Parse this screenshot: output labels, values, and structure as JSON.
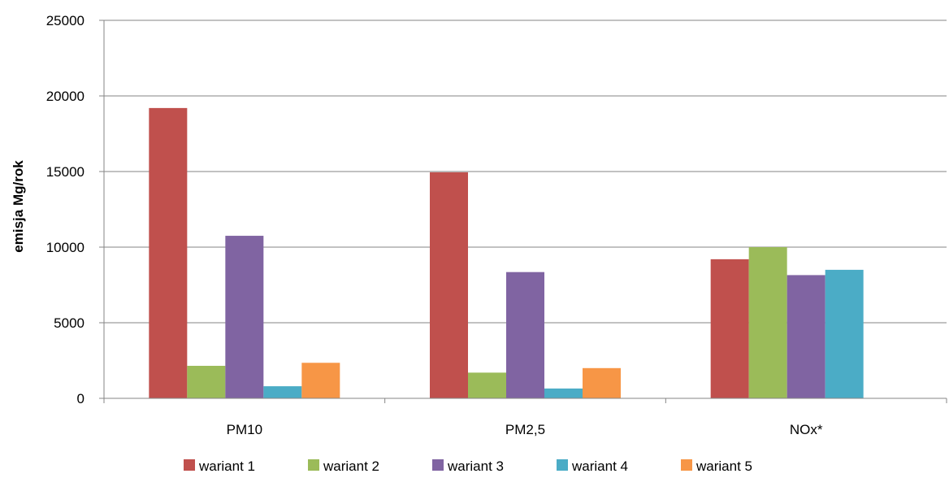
{
  "chart_data": {
    "type": "bar",
    "title": "",
    "xlabel": "",
    "ylabel": "emisja Mg/rok",
    "ylim": [
      0,
      25000
    ],
    "yticks": [
      0,
      5000,
      10000,
      15000,
      20000,
      25000
    ],
    "grid": true,
    "legend_position": "bottom",
    "categories": [
      "PM10",
      "PM2,5",
      "NOx*"
    ],
    "series": [
      {
        "name": "wariant 1",
        "color": "#C0504D",
        "values": [
          19200,
          14950,
          9200
        ]
      },
      {
        "name": "wariant 2",
        "color": "#9BBB59",
        "values": [
          2150,
          1700,
          10000
        ]
      },
      {
        "name": "wariant 3",
        "color": "#8064A2",
        "values": [
          10750,
          8350,
          8150
        ]
      },
      {
        "name": "wariant 4",
        "color": "#4BACC6",
        "values": [
          800,
          650,
          8500
        ]
      },
      {
        "name": "wariant 5",
        "color": "#F79646",
        "values": [
          2350,
          2000,
          null
        ]
      }
    ]
  }
}
